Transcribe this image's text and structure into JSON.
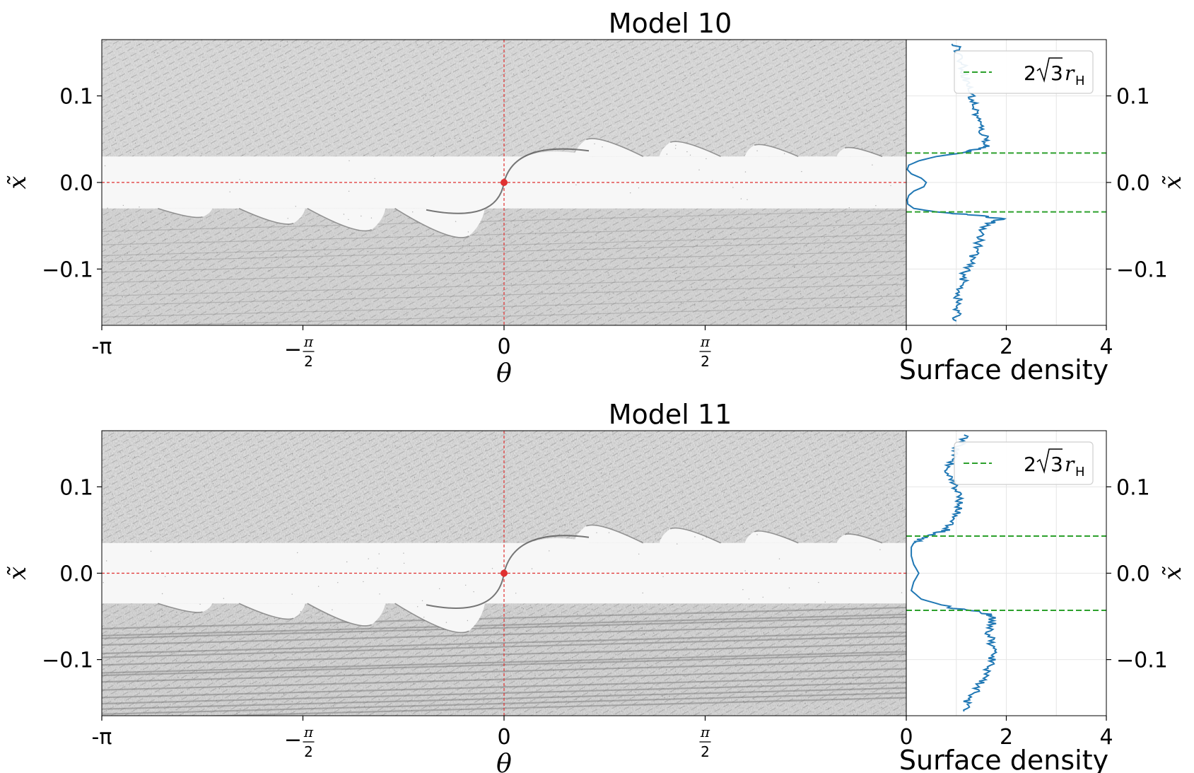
{
  "chart_data": [
    {
      "type": "scatter",
      "title": "Model 10",
      "main_panel": {
        "xlabel": "θ",
        "ylabel": "x̃",
        "xlim": [
          -3.1416,
          3.1416
        ],
        "ylim": [
          -0.165,
          0.165
        ],
        "x_ticks": [
          {
            "value": -3.1416,
            "label": "-π"
          },
          {
            "value": -1.5708,
            "label": "−π/2"
          },
          {
            "value": 0,
            "label": "0"
          },
          {
            "value": 1.5708,
            "label": "π/2"
          }
        ],
        "y_ticks": [
          {
            "value": 0.1,
            "label": "0.1"
          },
          {
            "value": 0.0,
            "label": "0.0"
          },
          {
            "value": -0.1,
            "label": "−0.1"
          }
        ],
        "planet": {
          "theta": 0,
          "x": 0
        },
        "gap_halfwidth": 0.03,
        "wake_lobes_lower": [
          -2.4,
          -1.7,
          -1.1,
          -0.35
        ],
        "wake_lobes_upper": [
          0.7,
          1.35,
          2.0,
          2.7
        ]
      },
      "side_panel": {
        "xlabel": "Surface density",
        "xlim": [
          0,
          4
        ],
        "x_ticks": [
          "0",
          "2",
          "4"
        ],
        "legend": {
          "position": "upper right",
          "label": "2√3 r_H",
          "label_parts": {
            "pre": "2",
            "radical": "3",
            "var": "r",
            "sub": "H"
          }
        },
        "hline_y": [
          0.034,
          -0.034
        ],
        "profile": [
          [
            0.16,
            1.0
          ],
          [
            0.15,
            1.05
          ],
          [
            0.14,
            1.1
          ],
          [
            0.13,
            1.15
          ],
          [
            0.12,
            1.2
          ],
          [
            0.11,
            1.25
          ],
          [
            0.1,
            1.3
          ],
          [
            0.09,
            1.35
          ],
          [
            0.08,
            1.4
          ],
          [
            0.07,
            1.45
          ],
          [
            0.06,
            1.5
          ],
          [
            0.05,
            1.6
          ],
          [
            0.042,
            1.62
          ],
          [
            0.038,
            1.4
          ],
          [
            0.034,
            1.1
          ],
          [
            0.03,
            0.6
          ],
          [
            0.025,
            0.25
          ],
          [
            0.02,
            0.05
          ],
          [
            0.015,
            0.02
          ],
          [
            0.01,
            0.1
          ],
          [
            0.005,
            0.3
          ],
          [
            0.0,
            0.4
          ],
          [
            -0.005,
            0.35
          ],
          [
            -0.01,
            0.15
          ],
          [
            -0.015,
            0.05
          ],
          [
            -0.02,
            0.02
          ],
          [
            -0.025,
            0.03
          ],
          [
            -0.03,
            0.15
          ],
          [
            -0.034,
            0.6
          ],
          [
            -0.038,
            1.4
          ],
          [
            -0.042,
            1.9
          ],
          [
            -0.046,
            1.7
          ],
          [
            -0.05,
            1.6
          ],
          [
            -0.06,
            1.5
          ],
          [
            -0.07,
            1.45
          ],
          [
            -0.08,
            1.4
          ],
          [
            -0.09,
            1.3
          ],
          [
            -0.1,
            1.2
          ],
          [
            -0.11,
            1.15
          ],
          [
            -0.12,
            1.1
          ],
          [
            -0.13,
            1.05
          ],
          [
            -0.14,
            1.02
          ],
          [
            -0.15,
            1.0
          ],
          [
            -0.16,
            1.0
          ]
        ]
      }
    },
    {
      "type": "scatter",
      "title": "Model 11",
      "main_panel": {
        "xlabel": "θ",
        "ylabel": "x̃",
        "xlim": [
          -3.1416,
          3.1416
        ],
        "ylim": [
          -0.165,
          0.165
        ],
        "x_ticks": [
          {
            "value": -3.1416,
            "label": "-π"
          },
          {
            "value": -1.5708,
            "label": "−π/2"
          },
          {
            "value": 0,
            "label": "0"
          },
          {
            "value": 1.5708,
            "label": "π/2"
          }
        ],
        "y_ticks": [
          {
            "value": 0.1,
            "label": "0.1"
          },
          {
            "value": 0.0,
            "label": "0.0"
          },
          {
            "value": -0.1,
            "label": "−0.1"
          }
        ],
        "planet": {
          "theta": 0,
          "x": 0
        },
        "gap_halfwidth": 0.035,
        "wake_lobes_lower": [
          -2.4,
          -1.7,
          -1.1,
          -0.35
        ],
        "wake_lobes_upper": [
          0.7,
          1.35,
          2.0,
          2.7
        ]
      },
      "side_panel": {
        "xlabel": "Surface density",
        "xlim": [
          0,
          4
        ],
        "x_ticks": [
          "0",
          "2",
          "4"
        ],
        "legend": {
          "position": "upper right",
          "label": "2√3 r_H",
          "label_parts": {
            "pre": "2",
            "radical": "3",
            "var": "r",
            "sub": "H"
          }
        },
        "hline_y": [
          0.043,
          -0.043
        ],
        "profile": [
          [
            0.16,
            1.2
          ],
          [
            0.15,
            1.1
          ],
          [
            0.14,
            0.95
          ],
          [
            0.13,
            0.9
          ],
          [
            0.12,
            0.85
          ],
          [
            0.11,
            0.9
          ],
          [
            0.1,
            1.0
          ],
          [
            0.09,
            1.05
          ],
          [
            0.08,
            1.1
          ],
          [
            0.07,
            1.0
          ],
          [
            0.06,
            0.95
          ],
          [
            0.05,
            0.8
          ],
          [
            0.045,
            0.55
          ],
          [
            0.04,
            0.3
          ],
          [
            0.035,
            0.15
          ],
          [
            0.03,
            0.1
          ],
          [
            0.02,
            0.1
          ],
          [
            0.01,
            0.15
          ],
          [
            0.0,
            0.25
          ],
          [
            -0.01,
            0.15
          ],
          [
            -0.02,
            0.1
          ],
          [
            -0.03,
            0.3
          ],
          [
            -0.04,
            0.9
          ],
          [
            -0.045,
            1.5
          ],
          [
            -0.05,
            1.75
          ],
          [
            -0.06,
            1.7
          ],
          [
            -0.07,
            1.65
          ],
          [
            -0.08,
            1.7
          ],
          [
            -0.09,
            1.75
          ],
          [
            -0.1,
            1.7
          ],
          [
            -0.11,
            1.65
          ],
          [
            -0.12,
            1.6
          ],
          [
            -0.13,
            1.45
          ],
          [
            -0.14,
            1.35
          ],
          [
            -0.15,
            1.2
          ],
          [
            -0.16,
            1.15
          ]
        ]
      }
    }
  ]
}
